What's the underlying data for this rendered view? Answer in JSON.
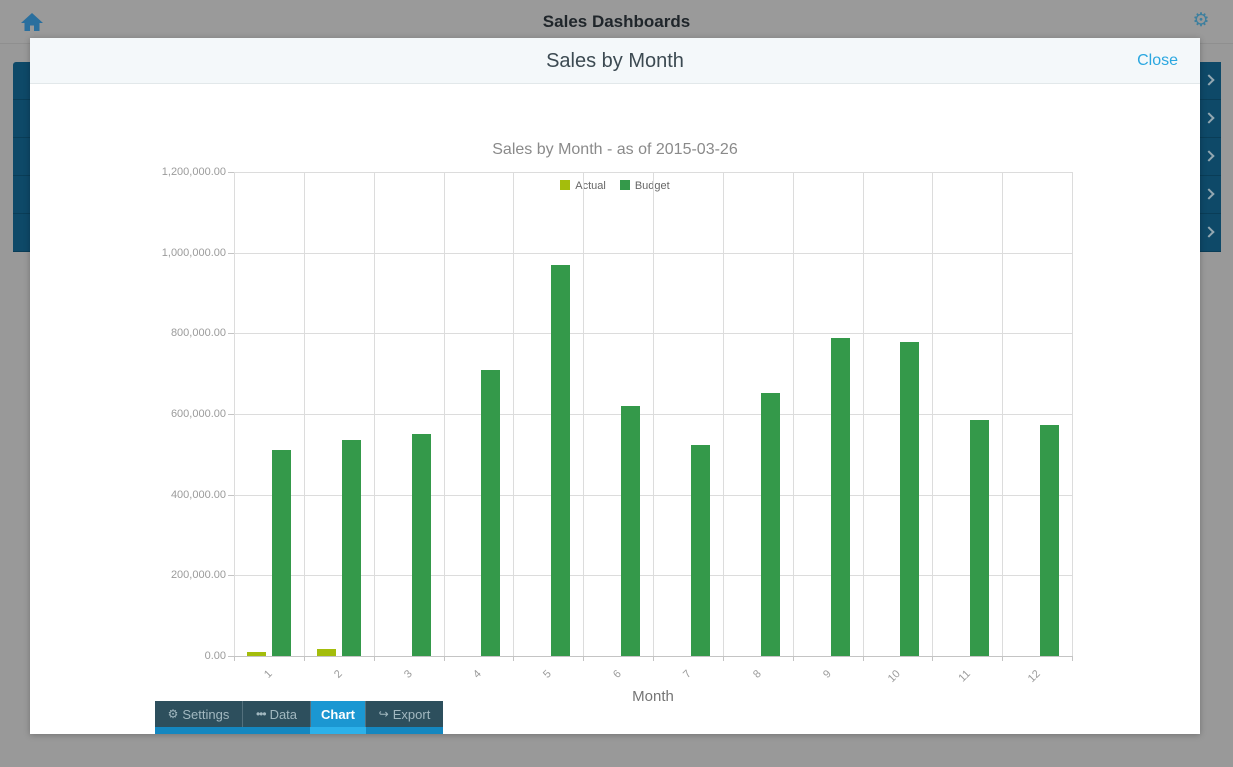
{
  "header": {
    "title": "Sales Dashboards"
  },
  "backdrop": {
    "row_count": 5
  },
  "modal": {
    "title": "Sales by Month",
    "close_label": "Close"
  },
  "chart_data": {
    "type": "bar",
    "title": "Sales by Month - as of 2015-03-26",
    "xlabel": "Month",
    "ylabel": "",
    "categories": [
      "1",
      "2",
      "3",
      "4",
      "5",
      "6",
      "7",
      "8",
      "9",
      "10",
      "11",
      "12"
    ],
    "series": [
      {
        "name": "Actual",
        "color": "#a4bd0c",
        "values": [
          10000,
          18000,
          0,
          0,
          0,
          0,
          0,
          0,
          0,
          0,
          0,
          0
        ]
      },
      {
        "name": "Budget",
        "color": "#34994a",
        "values": [
          510000,
          535000,
          550000,
          710000,
          970000,
          620000,
          522000,
          652000,
          788000,
          778000,
          585000,
          572000
        ]
      }
    ],
    "ylim": [
      0,
      1200000
    ],
    "ytick_step": 200000,
    "ytick_labels": [
      "0.00",
      "200,000.00",
      "400,000.00",
      "600,000.00",
      "800,000.00",
      "1,000,000.00",
      "1,200,000.00"
    ],
    "grid": true,
    "legend_position": "top"
  },
  "tabs": {
    "items": [
      {
        "label": "Settings",
        "icon": "gear",
        "active": false
      },
      {
        "label": "Data",
        "icon": "ellipsis",
        "active": false
      },
      {
        "label": "Chart",
        "icon": "",
        "active": true
      },
      {
        "label": "Export",
        "icon": "export-arrow",
        "active": false
      }
    ]
  },
  "colors": {
    "accent_blue": "#2ba7e0",
    "active_tab_blue": "#1b97d2",
    "tab_bar_dark": "#2d4f5d",
    "backdrop_row_navy": "#0e4968",
    "budget_green": "#34994a",
    "actual_yellow_green": "#a4bd0c"
  }
}
